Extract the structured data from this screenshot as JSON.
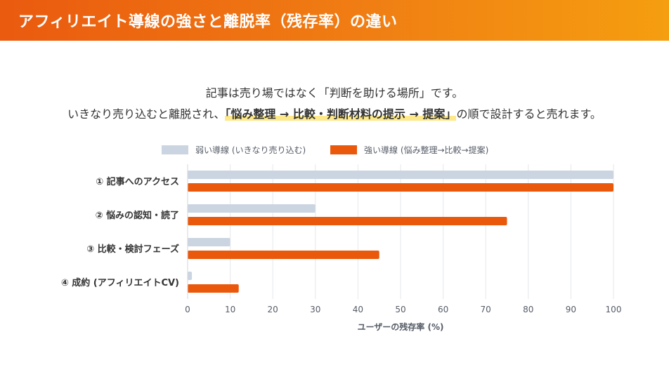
{
  "title": "アフィリエイト導線の強さと離脱率（残存率）の違い",
  "intro": {
    "line1": "記事は売り場ではなく「判断を助ける場所」です。",
    "line2_prefix": "いきなり売り込むと離脱され、",
    "line2_highlight": "「悩み整理 → 比較・判断材料の提示 → 提案」",
    "line2_suffix": "の順で設計すると売れます。"
  },
  "colors": {
    "weak": "#cbd5e1",
    "strong": "#ea580c",
    "grid": "#e5e7eb",
    "header_start": "#ea5a0f",
    "header_end": "#f59e10"
  },
  "chart_data": {
    "type": "bar",
    "orientation": "horizontal",
    "categories": [
      "① 記事へのアクセス",
      "② 悩みの認知・読了",
      "③ 比較・検討フェーズ",
      "④ 成約 (アフィリエイトCV)"
    ],
    "series": [
      {
        "name": "弱い導線 (いきなり売り込む)",
        "values": [
          100,
          30,
          10,
          1
        ]
      },
      {
        "name": "強い導線 (悩み整理→比較→提案)",
        "values": [
          100,
          75,
          45,
          12
        ]
      }
    ],
    "xlabel": "ユーザーの残存率 (%)",
    "xlim": [
      0,
      100
    ],
    "xticks": [
      0,
      10,
      20,
      30,
      40,
      50,
      60,
      70,
      80,
      90,
      100
    ],
    "grid": true,
    "legend_position": "top"
  }
}
